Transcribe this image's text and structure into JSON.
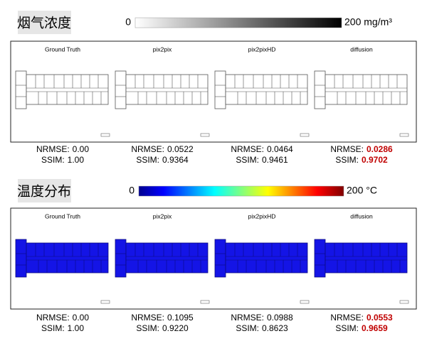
{
  "sections": [
    {
      "title": "烟气浓度",
      "colorbar": {
        "min_label": "0",
        "max_label": "200 mg/m³"
      },
      "panels": [
        {
          "label": "Ground Truth",
          "nrmse": "0.00",
          "ssim": "1.00"
        },
        {
          "label": "pix2pix",
          "nrmse": "0.0522",
          "ssim": "0.9364"
        },
        {
          "label": "pix2pixHD",
          "nrmse": "0.0464",
          "ssim": "0.9461"
        },
        {
          "label": "diffusion",
          "nrmse": "0.0286",
          "ssim": "0.9702",
          "best": true
        }
      ]
    },
    {
      "title": "温度分布",
      "colorbar": {
        "min_label": "0",
        "max_label": "200 °C"
      },
      "panels": [
        {
          "label": "Ground Truth",
          "nrmse": "0.00",
          "ssim": "1.00"
        },
        {
          "label": "pix2pix",
          "nrmse": "0.1095",
          "ssim": "0.9220"
        },
        {
          "label": "pix2pixHD",
          "nrmse": "0.0988",
          "ssim": "0.8623"
        },
        {
          "label": "diffusion",
          "nrmse": "0.0553",
          "ssim": "0.9659",
          "best": true
        }
      ]
    }
  ],
  "metric_labels": {
    "nrmse": "NRMSE:",
    "ssim": "SSIM:"
  },
  "best_color": "#c00000"
}
